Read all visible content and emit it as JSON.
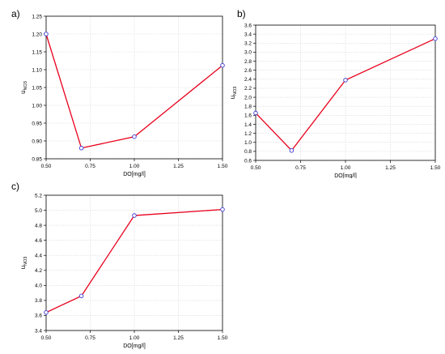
{
  "panels": [
    {
      "letter": "a)"
    },
    {
      "letter": "b)"
    },
    {
      "letter": "c)"
    }
  ],
  "chart_data": [
    {
      "type": "line",
      "panel": "a)",
      "xlabel": "DO[mg/l]",
      "ylabel_main": "u",
      "ylabel_sub": "NO3",
      "xlim": [
        0.5,
        1.5
      ],
      "ylim": [
        0.85,
        1.25
      ],
      "xticks": [
        0.5,
        0.75,
        1.0,
        1.25,
        1.5
      ],
      "yticks": [
        0.85,
        0.9,
        0.95,
        1.0,
        1.05,
        1.1,
        1.15,
        1.2,
        1.25
      ],
      "x": [
        0.5,
        0.7,
        1.0,
        1.5
      ],
      "y": [
        1.2,
        0.88,
        0.912,
        1.112
      ],
      "grid": true,
      "line_color": "#e8001c",
      "marker_color": "#3a3ad4"
    },
    {
      "type": "line",
      "panel": "b)",
      "xlabel": "DO[mg/l]",
      "ylabel_main": "u",
      "ylabel_sub": "NO3",
      "xlim": [
        0.5,
        1.5
      ],
      "ylim": [
        0.6,
        3.6
      ],
      "xticks": [
        0.5,
        0.75,
        1.0,
        1.25,
        1.5
      ],
      "yticks": [
        0.6,
        0.8,
        1.0,
        1.2,
        1.4,
        1.6,
        1.8,
        2.0,
        2.2,
        2.4,
        2.6,
        2.8,
        3.0,
        3.2,
        3.4,
        3.6
      ],
      "x": [
        0.5,
        0.7,
        1.0,
        1.5
      ],
      "y": [
        1.65,
        0.82,
        2.38,
        3.3
      ],
      "grid": true,
      "line_color": "#e8001c",
      "marker_color": "#3a3ad4"
    },
    {
      "type": "line",
      "panel": "c)",
      "xlabel": "DO[mg/l]",
      "ylabel_main": "u",
      "ylabel_sub": "NO3",
      "xlim": [
        0.5,
        1.5
      ],
      "ylim": [
        3.4,
        5.2
      ],
      "xticks": [
        0.5,
        0.75,
        1.0,
        1.25,
        1.5
      ],
      "yticks": [
        3.4,
        3.6,
        3.8,
        4.0,
        4.2,
        4.4,
        4.6,
        4.8,
        5.0,
        5.2
      ],
      "x": [
        0.5,
        0.7,
        1.0,
        1.5
      ],
      "y": [
        3.64,
        3.86,
        4.93,
        5.01
      ],
      "grid": true,
      "line_color": "#e8001c",
      "marker_color": "#3a3ad4"
    }
  ]
}
